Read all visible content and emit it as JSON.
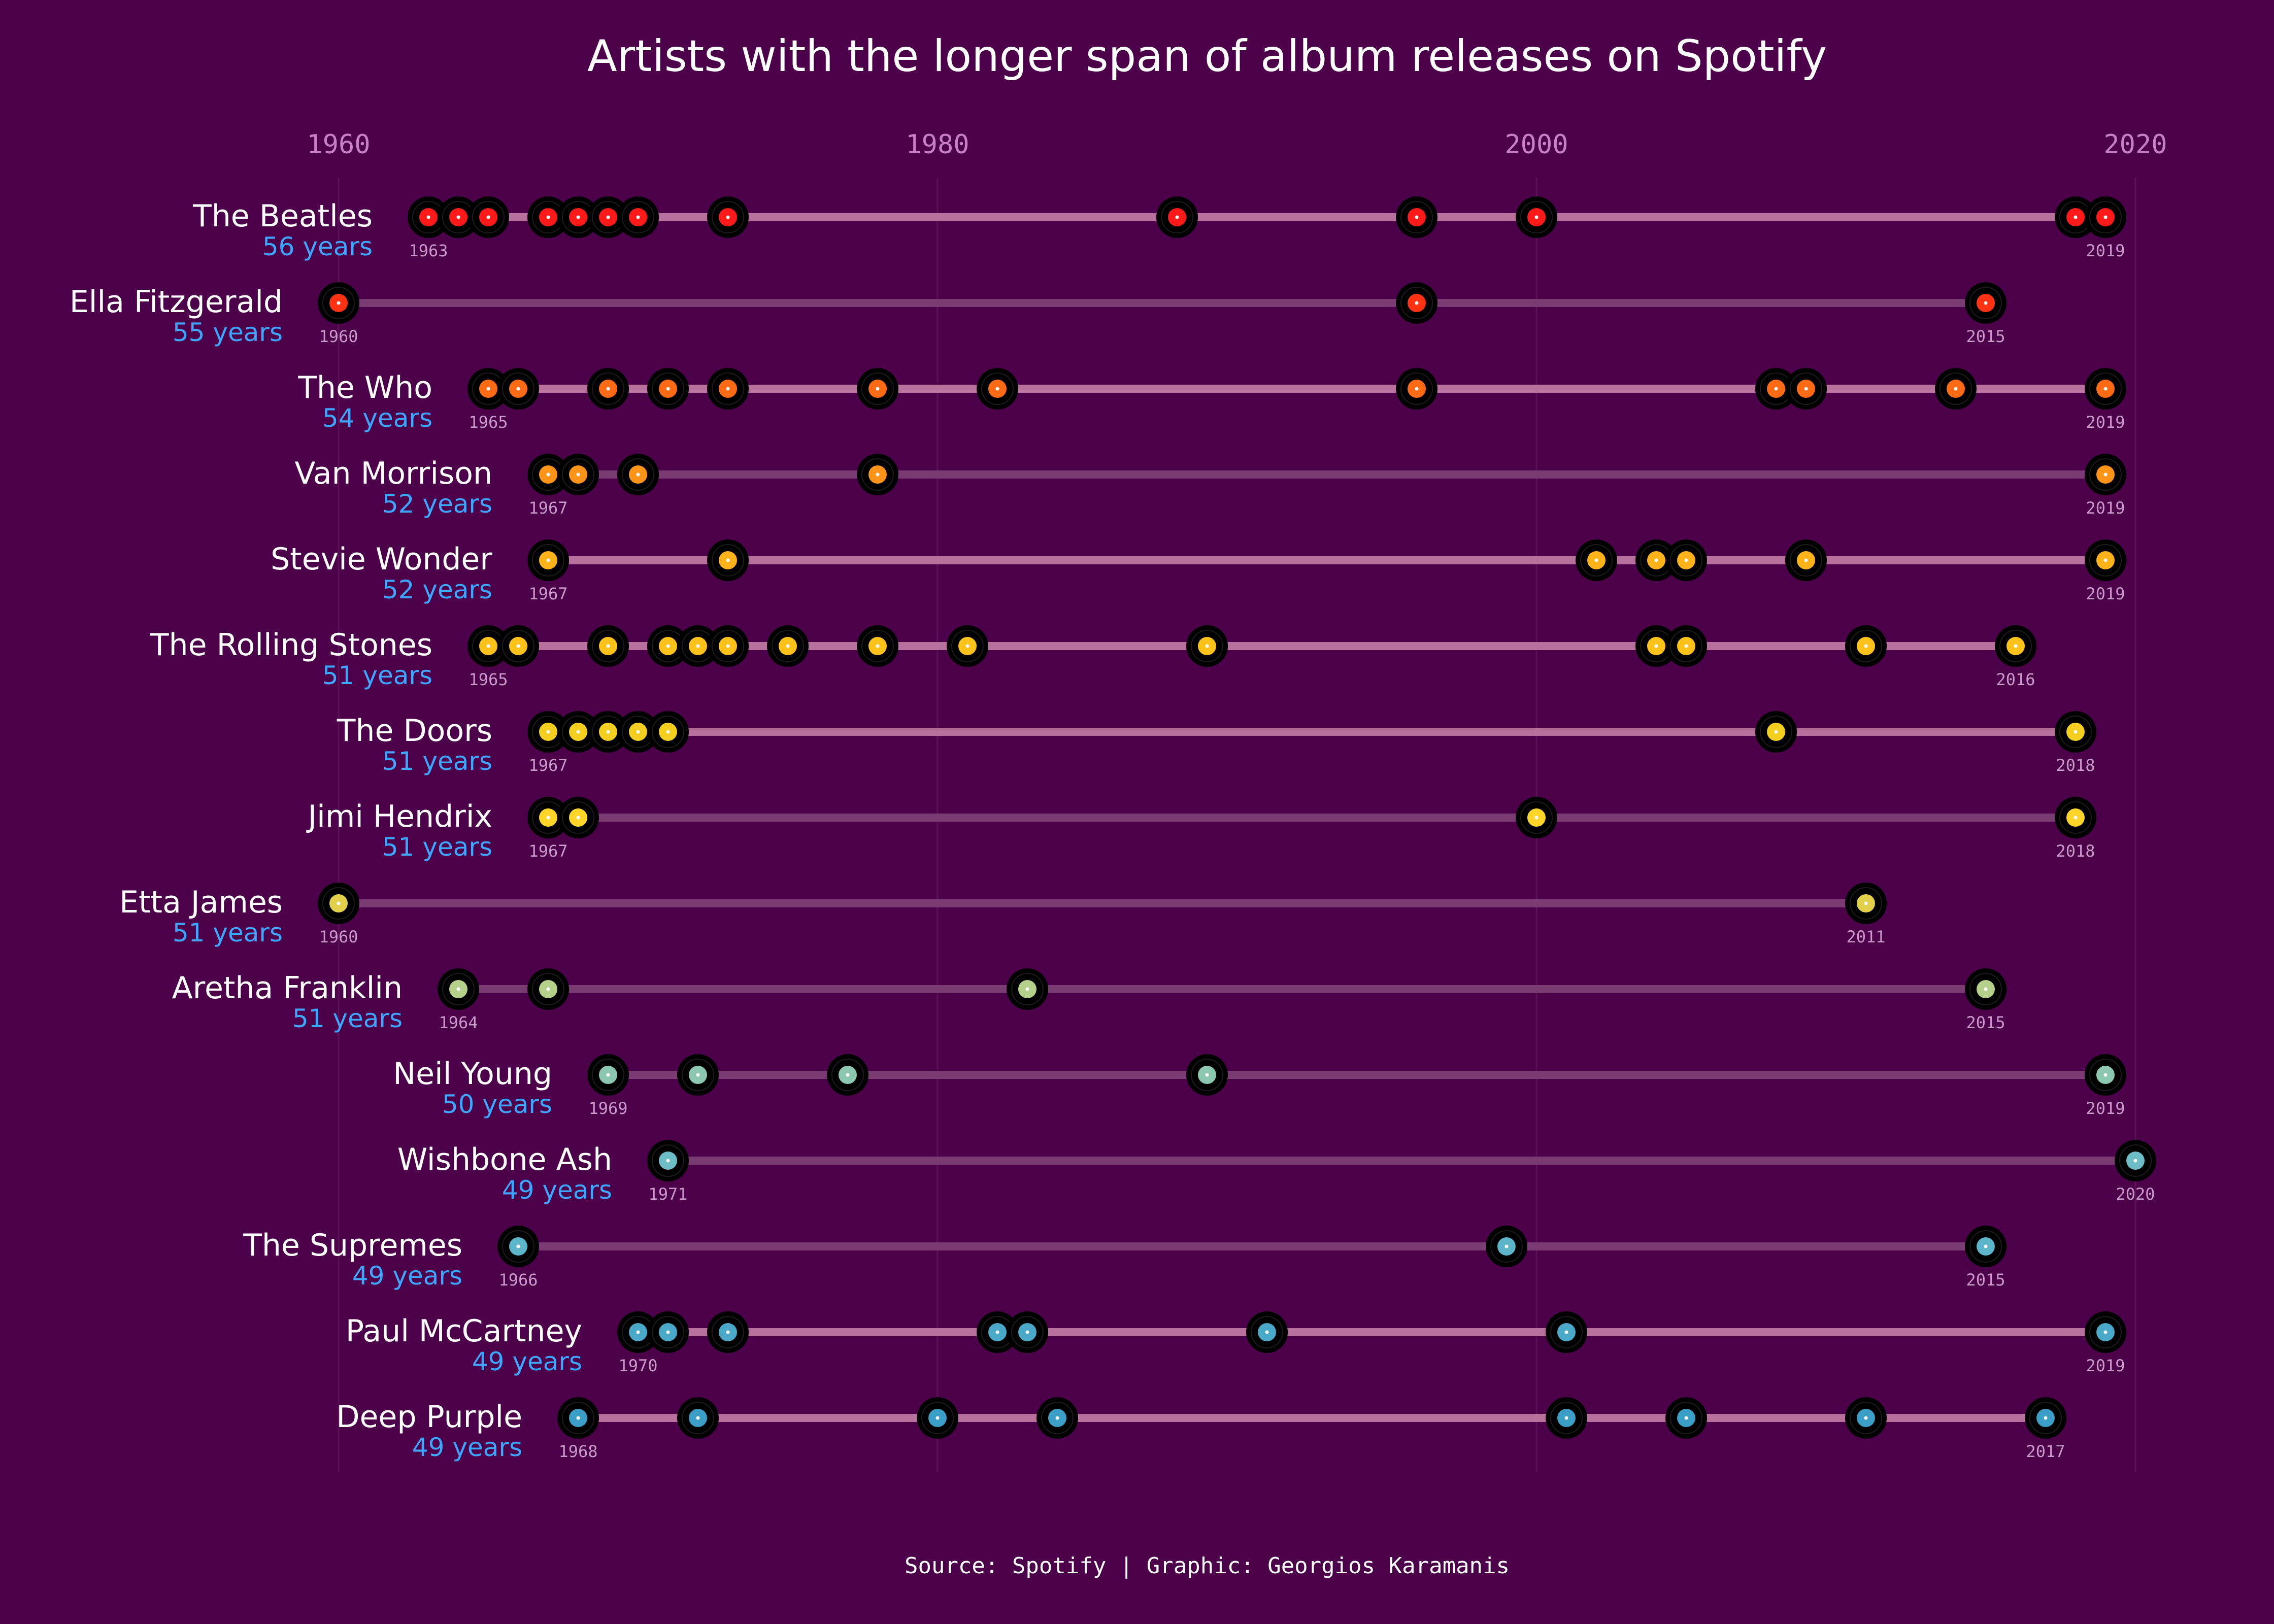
{
  "chart_data": {
    "type": "timeline",
    "title": "Artists with the longer span of album releases on Spotify",
    "caption": "Source: Spotify | Graphic: Georgios Karamanis",
    "x_ticks": [
      "1960",
      "1980",
      "2000",
      "2020"
    ],
    "xlim": [
      1960,
      2020
    ],
    "duration_suffix": "years",
    "colors": {
      "background": "#4d004a",
      "title": "#ffffff",
      "artist_name": "#ffffff",
      "duration": "#3fa6ff",
      "tick_label": "#c77fc7",
      "year_label": "#c99bc9",
      "line_light": "#b8709c",
      "line_dark": "#7a3a72",
      "record": "#000000"
    },
    "series": [
      {
        "name": "The Beatles",
        "duration": 56,
        "first": 1963,
        "last": 2019,
        "color": "#ff1a1a",
        "releases": [
          1963,
          1964,
          1965,
          1967,
          1968,
          1969,
          1970,
          1973,
          1988,
          1996,
          2000,
          2018,
          2019
        ]
      },
      {
        "name": "Ella Fitzgerald",
        "duration": 55,
        "first": 1960,
        "last": 2015,
        "color": "#ff3314",
        "releases": [
          1960,
          1996,
          2015
        ]
      },
      {
        "name": "The Who",
        "duration": 54,
        "first": 1965,
        "last": 2019,
        "color": "#ff6a14",
        "releases": [
          1965,
          1966,
          1969,
          1971,
          1973,
          1978,
          1982,
          1996,
          2008,
          2009,
          2014,
          2019
        ]
      },
      {
        "name": "Van Morrison",
        "duration": 52,
        "first": 1967,
        "last": 2019,
        "color": "#ff9418",
        "releases": [
          1967,
          1968,
          1970,
          1978,
          2019
        ]
      },
      {
        "name": "Stevie Wonder",
        "duration": 52,
        "first": 1967,
        "last": 2019,
        "color": "#ffb31a",
        "releases": [
          1967,
          1973,
          2002,
          2004,
          2005,
          2009,
          2019
        ]
      },
      {
        "name": "The Rolling Stones",
        "duration": 51,
        "first": 1965,
        "last": 2016,
        "color": "#ffc21a",
        "releases": [
          1965,
          1966,
          1969,
          1971,
          1972,
          1973,
          1975,
          1978,
          1981,
          1989,
          2004,
          2005,
          2011,
          2016
        ]
      },
      {
        "name": "The Doors",
        "duration": 51,
        "first": 1967,
        "last": 2018,
        "color": "#f5cf1f",
        "releases": [
          1967,
          1968,
          1969,
          1970,
          1971,
          2008,
          2018
        ]
      },
      {
        "name": "Jimi Hendrix",
        "duration": 51,
        "first": 1967,
        "last": 2018,
        "color": "#ffd52a",
        "releases": [
          1967,
          1968,
          2000,
          2018
        ]
      },
      {
        "name": "Etta James",
        "duration": 51,
        "first": 1960,
        "last": 2011,
        "color": "#e2d04a",
        "releases": [
          1960,
          2011
        ]
      },
      {
        "name": "Aretha Franklin",
        "duration": 51,
        "first": 1964,
        "last": 2015,
        "color": "#b5d08a",
        "releases": [
          1964,
          1967,
          1983,
          2015
        ]
      },
      {
        "name": "Neil Young",
        "duration": 50,
        "first": 1969,
        "last": 2019,
        "color": "#8cc8b0",
        "releases": [
          1969,
          1972,
          1977,
          1989,
          2019
        ]
      },
      {
        "name": "Wishbone Ash",
        "duration": 49,
        "first": 1971,
        "last": 2020,
        "color": "#6cbdc6",
        "releases": [
          1971,
          2020
        ]
      },
      {
        "name": "The Supremes",
        "duration": 49,
        "first": 1966,
        "last": 2015,
        "color": "#5cb5c8",
        "releases": [
          1966,
          1999,
          2015
        ]
      },
      {
        "name": "Paul McCartney",
        "duration": 49,
        "first": 1970,
        "last": 2019,
        "color": "#4aa8c8",
        "releases": [
          1970,
          1971,
          1973,
          1982,
          1983,
          1991,
          2001,
          2019
        ]
      },
      {
        "name": "Deep Purple",
        "duration": 49,
        "first": 1968,
        "last": 2017,
        "color": "#3a9ec6",
        "releases": [
          1968,
          1972,
          1980,
          1984,
          2001,
          2005,
          2011,
          2017
        ]
      }
    ]
  }
}
